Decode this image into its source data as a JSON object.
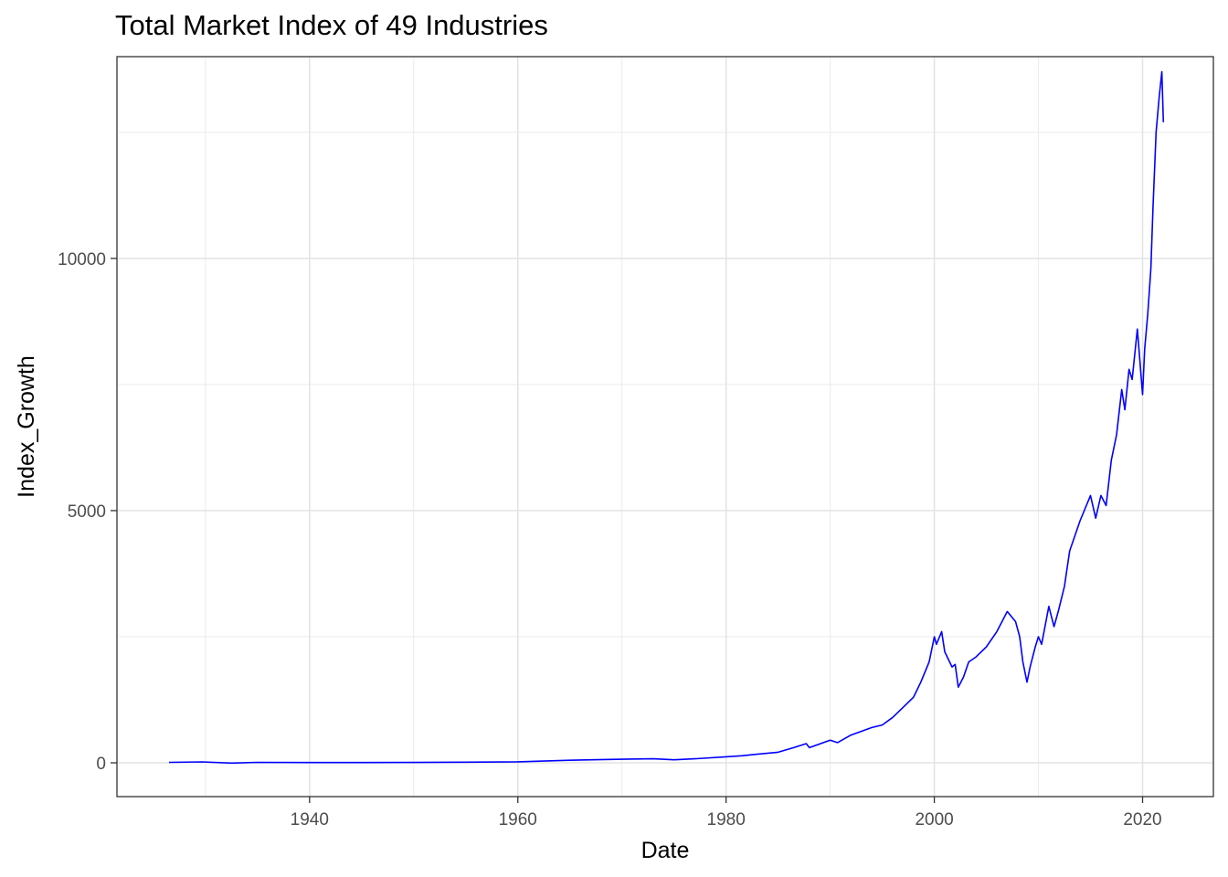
{
  "chart_data": {
    "type": "line",
    "title": "Total Market Index of 49 Industries",
    "xlabel": "Date",
    "ylabel": "Index_Growth",
    "x_ticks": [
      "1940",
      "1960",
      "1980",
      "2000",
      "2020"
    ],
    "y_ticks": [
      "0",
      "5000",
      "10000"
    ],
    "xlim": [
      1921.5,
      2026.8
    ],
    "ylim": [
      -670,
      14000
    ],
    "grid": true,
    "legend": "none",
    "line_color": "#0000FF",
    "series": [
      {
        "x": [
          1926.5,
          1929.7,
          1932.5,
          1935,
          1940,
          1945,
          1950,
          1955,
          1960,
          1965,
          1970,
          1973,
          1975,
          1977,
          1980,
          1981.5,
          1983,
          1985,
          1986.5,
          1987.7,
          1988,
          1990,
          1990.7,
          1992,
          1994,
          1995,
          1996,
          1997,
          1998,
          1998.7,
          1999.5,
          2000,
          2000.2,
          2000.7,
          2001,
          2001.7,
          2002,
          2002.3,
          2002.8,
          2003.3,
          2004,
          2005,
          2006,
          2007,
          2007.8,
          2008.2,
          2008.5,
          2008.9,
          2009.2,
          2009.7,
          2010,
          2010.3,
          2011,
          2011.5,
          2011.9,
          2012.5,
          2013,
          2014,
          2015,
          2015.5,
          2016,
          2016.5,
          2017,
          2017.5,
          2018,
          2018.3,
          2018.7,
          2019,
          2019.5,
          2020,
          2020.2,
          2020.5,
          2020.8,
          2021,
          2021.3,
          2021.6,
          2021.85,
          2022
        ],
        "y": [
          10,
          18,
          -5,
          10,
          5,
          6,
          8,
          12,
          20,
          50,
          70,
          80,
          60,
          80,
          120,
          140,
          170,
          210,
          300,
          380,
          300,
          450,
          400,
          550,
          700,
          750,
          900,
          1100,
          1300,
          1600,
          2000,
          2500,
          2350,
          2600,
          2200,
          1900,
          1950,
          1500,
          1700,
          2000,
          2100,
          2300,
          2600,
          3000,
          2800,
          2500,
          2000,
          1600,
          1900,
          2300,
          2500,
          2350,
          3100,
          2700,
          3000,
          3500,
          4200,
          4800,
          5300,
          4850,
          5300,
          5100,
          6000,
          6500,
          7400,
          7000,
          7800,
          7600,
          8600,
          7300,
          8200,
          8900,
          9800,
          11000,
          12500,
          13200,
          13700,
          12700
        ]
      }
    ]
  }
}
